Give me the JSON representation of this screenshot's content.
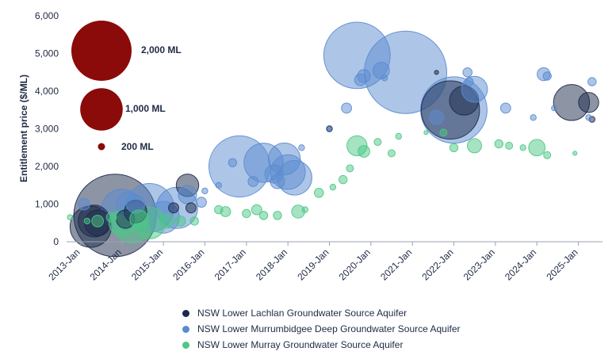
{
  "chart_data": {
    "type": "scatter",
    "subtype": "bubble",
    "ylabel": "Entitlement price ($/ML)",
    "ylim": [
      0,
      6000
    ],
    "yticks": [
      0,
      1000,
      2000,
      3000,
      4000,
      5000,
      6000
    ],
    "ytick_labels": [
      "0",
      "1,000",
      "2,000",
      "3,000",
      "4,000",
      "5,000",
      "6,000"
    ],
    "xlim": [
      "2012-09-01",
      "2025-08-01"
    ],
    "xticks": [
      "2013-01-01",
      "2014-01-01",
      "2015-01-01",
      "2016-01-01",
      "2017-01-01",
      "2018-01-01",
      "2019-01-01",
      "2020-01-01",
      "2021-01-01",
      "2022-01-01",
      "2023-01-01",
      "2024-01-01",
      "2025-01-01"
    ],
    "xtick_labels": [
      "2013-Jan",
      "2014-Jan",
      "2015-Jan",
      "2016-Jan",
      "2017-Jan",
      "2018-Jan",
      "2019-Jan",
      "2020-Jan",
      "2021-Jan",
      "2022-Jan",
      "2023-Jan",
      "2024-Jan",
      "2025-Jan"
    ],
    "grid": false,
    "size_legend": {
      "color": "#8b0a0a",
      "entries": [
        {
          "label": "2,000 ML",
          "volume": 2000
        },
        {
          "label": "1,000 ML",
          "volume": 1000
        },
        {
          "label": "200 ML",
          "volume": 200
        }
      ]
    },
    "legend_position": "bottom",
    "series": [
      {
        "name": "NSW Lower Lachlan Groundwater Source Aquifer",
        "color": "#1b2a4a",
        "points": [
          {
            "x": "2013-04-01",
            "y": 400,
            "v": 500
          },
          {
            "x": "2013-05-01",
            "y": 550,
            "v": 300
          },
          {
            "x": "2013-06-01",
            "y": 500,
            "v": 200
          },
          {
            "x": "2013-11-01",
            "y": 700,
            "v": 2000
          },
          {
            "x": "2014-02-01",
            "y": 600,
            "v": 100
          },
          {
            "x": "2014-05-01",
            "y": 800,
            "v": 150
          },
          {
            "x": "2015-04-01",
            "y": 900,
            "v": 30
          },
          {
            "x": "2015-08-01",
            "y": 1500,
            "v": 150
          },
          {
            "x": "2015-09-01",
            "y": 900,
            "v": 30
          },
          {
            "x": "2019-01-01",
            "y": 3000,
            "v": 10
          },
          {
            "x": "2021-08-01",
            "y": 4500,
            "v": 5
          },
          {
            "x": "2021-12-01",
            "y": 3500,
            "v": 1000
          },
          {
            "x": "2022-04-01",
            "y": 3750,
            "v": 250
          },
          {
            "x": "2024-11-01",
            "y": 3700,
            "v": 380
          },
          {
            "x": "2025-04-01",
            "y": 3700,
            "v": 120
          },
          {
            "x": "2025-05-01",
            "y": 3250,
            "v": 10
          }
        ]
      },
      {
        "name": "NSW Lower Murrumbidgee Deep Groundwater Source Aquifer",
        "color": "#5b8bd0",
        "points": [
          {
            "x": "2013-02-01",
            "y": 1000,
            "v": 40
          },
          {
            "x": "2014-01-01",
            "y": 850,
            "v": 500
          },
          {
            "x": "2014-03-01",
            "y": 1000,
            "v": 180
          },
          {
            "x": "2014-05-01",
            "y": 1000,
            "v": 100
          },
          {
            "x": "2014-09-01",
            "y": 900,
            "v": 700
          },
          {
            "x": "2015-01-01",
            "y": 650,
            "v": 300
          },
          {
            "x": "2015-05-01",
            "y": 900,
            "v": 500
          },
          {
            "x": "2015-08-01",
            "y": 1250,
            "v": 100
          },
          {
            "x": "2015-12-01",
            "y": 1050,
            "v": 30
          },
          {
            "x": "2016-01-01",
            "y": 1350,
            "v": 10
          },
          {
            "x": "2016-05-01",
            "y": 1500,
            "v": 10
          },
          {
            "x": "2016-09-01",
            "y": 2100,
            "v": 20
          },
          {
            "x": "2016-11-01",
            "y": 2000,
            "v": 1100
          },
          {
            "x": "2017-03-01",
            "y": 1600,
            "v": 30
          },
          {
            "x": "2017-06-01",
            "y": 2100,
            "v": 450
          },
          {
            "x": "2017-09-01",
            "y": 1800,
            "v": 100
          },
          {
            "x": "2017-10-01",
            "y": 1600,
            "v": 60
          },
          {
            "x": "2017-12-01",
            "y": 2200,
            "v": 300
          },
          {
            "x": "2018-01-01",
            "y": 1850,
            "v": 350
          },
          {
            "x": "2018-03-01",
            "y": 1700,
            "v": 350
          },
          {
            "x": "2018-05-01",
            "y": 2500,
            "v": 10
          },
          {
            "x": "2019-01-01",
            "y": 3000,
            "v": 5
          },
          {
            "x": "2019-06-01",
            "y": 3550,
            "v": 30
          },
          {
            "x": "2019-09-01",
            "y": 4950,
            "v": 1300
          },
          {
            "x": "2019-10-01",
            "y": 4300,
            "v": 40
          },
          {
            "x": "2019-11-01",
            "y": 4400,
            "v": 50
          },
          {
            "x": "2020-04-01",
            "y": 4550,
            "v": 80
          },
          {
            "x": "2020-05-01",
            "y": 4350,
            "v": 10
          },
          {
            "x": "2020-11-01",
            "y": 4500,
            "v": 2000
          },
          {
            "x": "2021-08-01",
            "y": 3300,
            "v": 60
          },
          {
            "x": "2022-01-01",
            "y": 3500,
            "v": 1300
          },
          {
            "x": "2022-05-01",
            "y": 4500,
            "v": 25
          },
          {
            "x": "2022-05-15",
            "y": 4250,
            "v": 20
          },
          {
            "x": "2022-07-01",
            "y": 4050,
            "v": 200
          },
          {
            "x": "2023-04-01",
            "y": 3550,
            "v": 30
          },
          {
            "x": "2023-12-01",
            "y": 3300,
            "v": 10
          },
          {
            "x": "2024-03-01",
            "y": 4450,
            "v": 50
          },
          {
            "x": "2024-04-01",
            "y": 4400,
            "v": 20
          },
          {
            "x": "2024-06-01",
            "y": 3550,
            "v": 8
          },
          {
            "x": "2025-04-01",
            "y": 3300,
            "v": 10
          },
          {
            "x": "2025-05-01",
            "y": 4250,
            "v": 20
          }
        ]
      },
      {
        "name": "NSW Lower Murray Groundwater Source Aquifer",
        "color": "#4cc785",
        "points": [
          {
            "x": "2012-10-01",
            "y": 650,
            "v": 8
          },
          {
            "x": "2013-03-01",
            "y": 550,
            "v": 10
          },
          {
            "x": "2013-06-01",
            "y": 550,
            "v": 40
          },
          {
            "x": "2013-10-01",
            "y": 650,
            "v": 30
          },
          {
            "x": "2014-01-01",
            "y": 500,
            "v": 200
          },
          {
            "x": "2014-04-01",
            "y": 450,
            "v": 400
          },
          {
            "x": "2014-06-01",
            "y": 600,
            "v": 100
          },
          {
            "x": "2014-09-01",
            "y": 500,
            "v": 300
          },
          {
            "x": "2015-02-01",
            "y": 550,
            "v": 60
          },
          {
            "x": "2015-06-01",
            "y": 550,
            "v": 30
          },
          {
            "x": "2015-10-01",
            "y": 550,
            "v": 20
          },
          {
            "x": "2016-05-01",
            "y": 850,
            "v": 20
          },
          {
            "x": "2016-07-01",
            "y": 800,
            "v": 30
          },
          {
            "x": "2017-01-01",
            "y": 750,
            "v": 20
          },
          {
            "x": "2017-04-01",
            "y": 850,
            "v": 30
          },
          {
            "x": "2017-06-01",
            "y": 700,
            "v": 20
          },
          {
            "x": "2017-10-01",
            "y": 700,
            "v": 20
          },
          {
            "x": "2018-04-01",
            "y": 800,
            "v": 50
          },
          {
            "x": "2018-06-01",
            "y": 850,
            "v": 10
          },
          {
            "x": "2018-10-01",
            "y": 1300,
            "v": 25
          },
          {
            "x": "2019-02-01",
            "y": 1450,
            "v": 10
          },
          {
            "x": "2019-05-01",
            "y": 1650,
            "v": 20
          },
          {
            "x": "2019-07-01",
            "y": 1950,
            "v": 15
          },
          {
            "x": "2019-09-01",
            "y": 2550,
            "v": 120
          },
          {
            "x": "2019-11-01",
            "y": 2400,
            "v": 40
          },
          {
            "x": "2020-03-01",
            "y": 2650,
            "v": 15
          },
          {
            "x": "2020-07-01",
            "y": 2350,
            "v": 15
          },
          {
            "x": "2020-09-01",
            "y": 2800,
            "v": 10
          },
          {
            "x": "2021-05-01",
            "y": 2900,
            "v": 5
          },
          {
            "x": "2021-10-01",
            "y": 2900,
            "v": 15
          },
          {
            "x": "2022-01-01",
            "y": 2500,
            "v": 20
          },
          {
            "x": "2022-07-01",
            "y": 2550,
            "v": 60
          },
          {
            "x": "2023-02-01",
            "y": 2600,
            "v": 20
          },
          {
            "x": "2023-05-01",
            "y": 2550,
            "v": 15
          },
          {
            "x": "2023-09-01",
            "y": 2500,
            "v": 10
          },
          {
            "x": "2024-01-01",
            "y": 2500,
            "v": 80
          },
          {
            "x": "2024-04-01",
            "y": 2300,
            "v": 15
          },
          {
            "x": "2024-12-01",
            "y": 2350,
            "v": 5
          }
        ]
      }
    ]
  }
}
